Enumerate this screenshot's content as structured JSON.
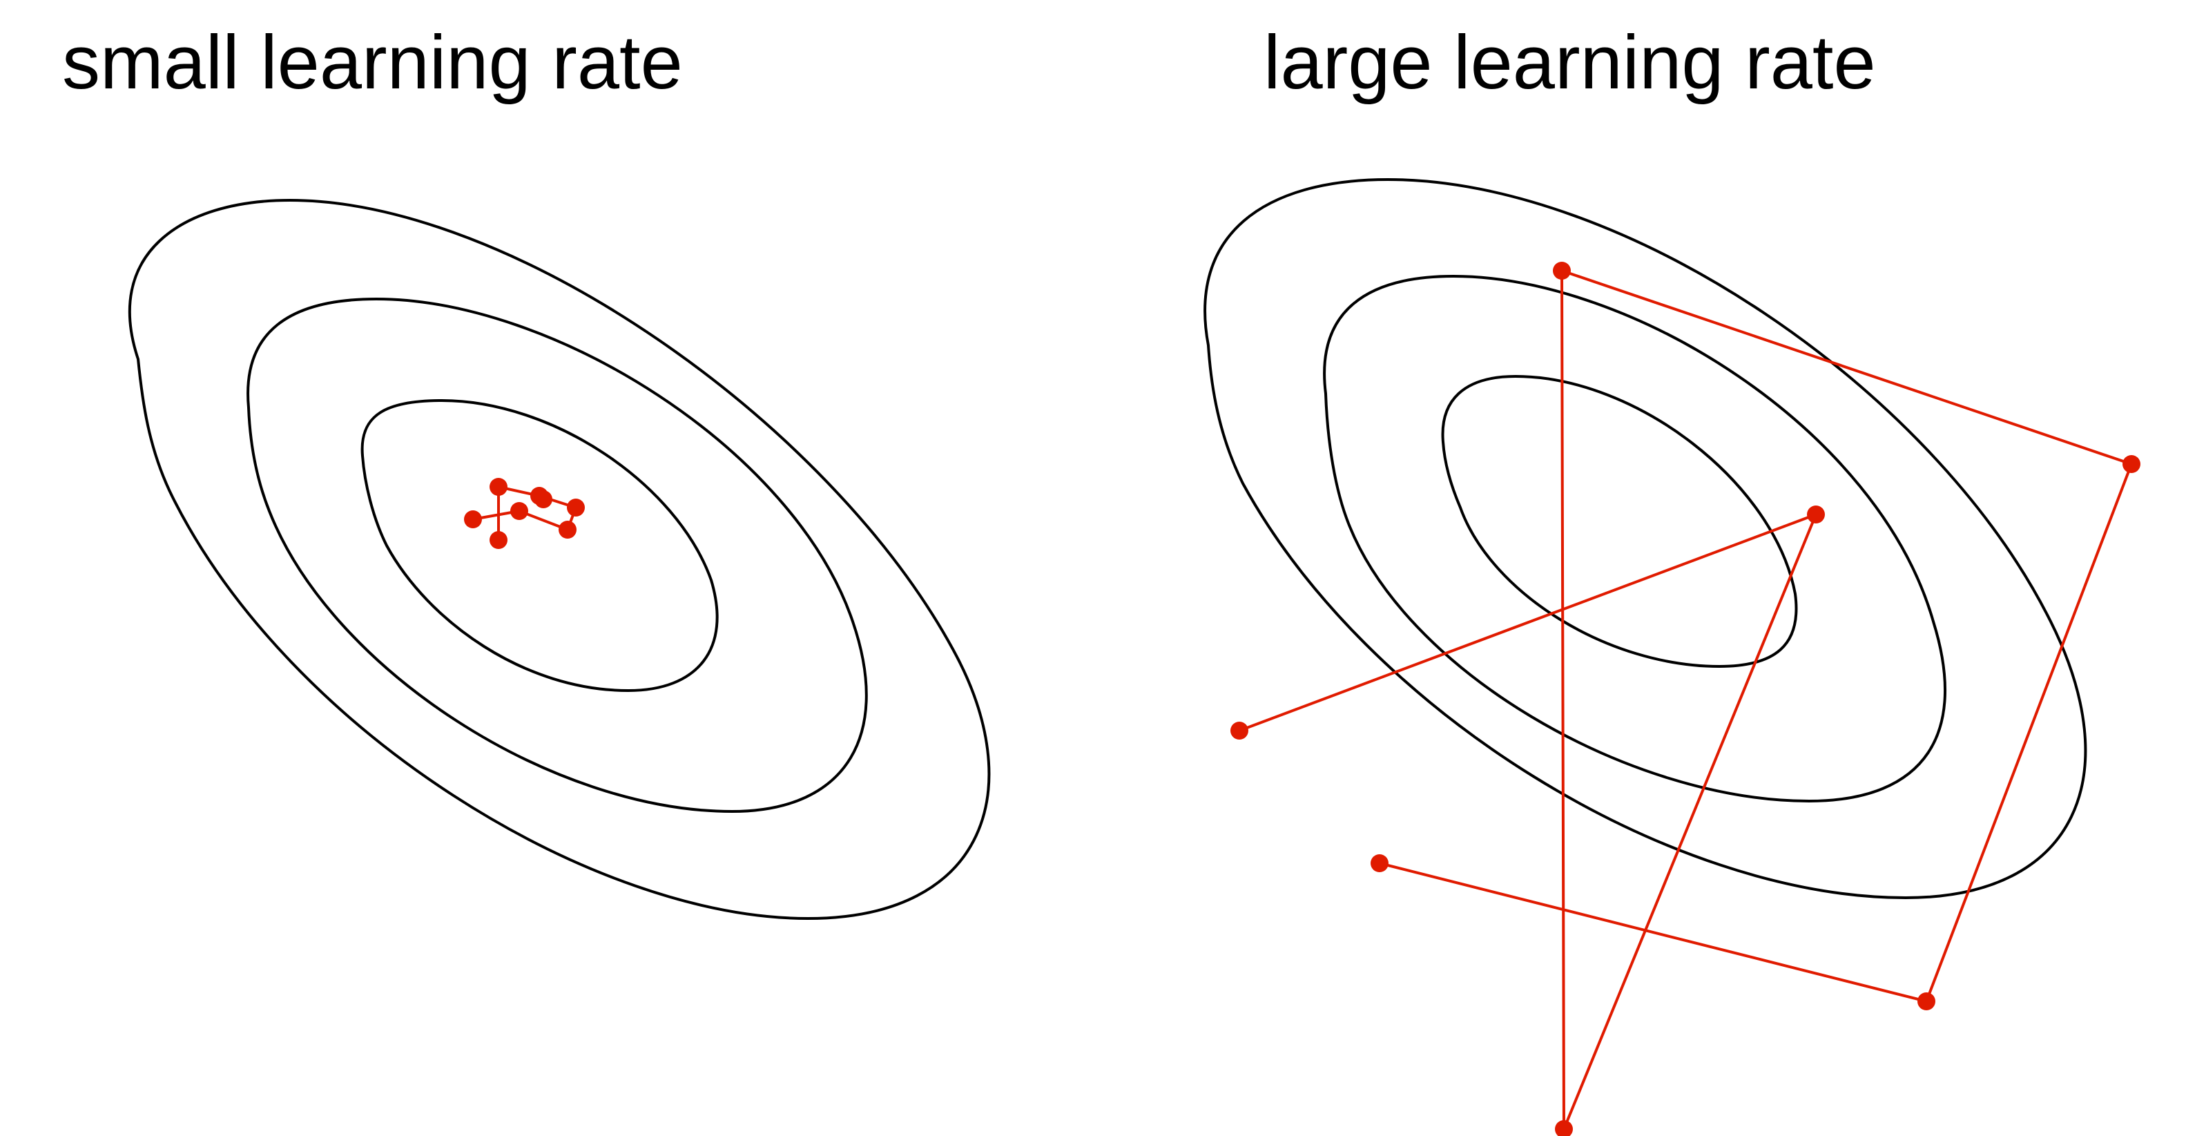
{
  "panels": [
    {
      "title": "small learning rate",
      "contour_count": 3,
      "steps": 8
    },
    {
      "title": "large learning rate",
      "contour_count": 3,
      "steps": 8
    }
  ],
  "colors": {
    "contour": "#000000",
    "path": "#e01b00",
    "background": "#ffffff"
  }
}
